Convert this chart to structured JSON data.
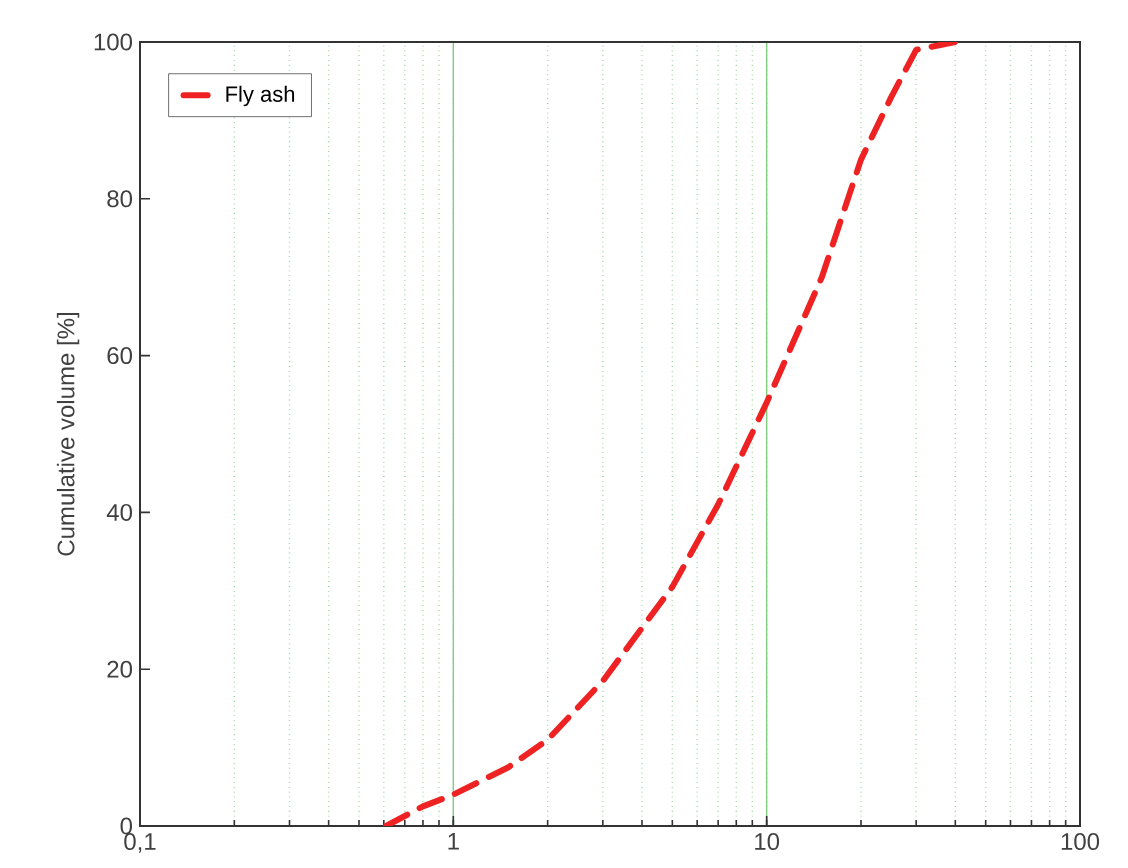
{
  "chart_data": {
    "type": "line",
    "ylabel": "Cumulative volume [%]",
    "log": "x",
    "grid": "x",
    "legend": "top left",
    "line_style": "dashed",
    "xlim": [
      0.1,
      100
    ],
    "xticks": [
      {
        "value": 0.1,
        "label": "0,1"
      },
      1,
      10,
      100
    ],
    "ylim": [
      0,
      100
    ],
    "yticks": [
      0,
      20,
      40,
      60,
      80,
      100
    ],
    "series": [
      {
        "name": "Fly ash",
        "color": "#ee2222",
        "x": [
          0.61,
          0.8,
          1,
          1.5,
          2,
          3,
          5,
          7,
          10,
          15,
          20,
          25,
          30,
          40
        ],
        "values": [
          0,
          2.5,
          4,
          7.5,
          11,
          18.5,
          30.5,
          41,
          54,
          70,
          85,
          93,
          99,
          100
        ]
      }
    ]
  }
}
